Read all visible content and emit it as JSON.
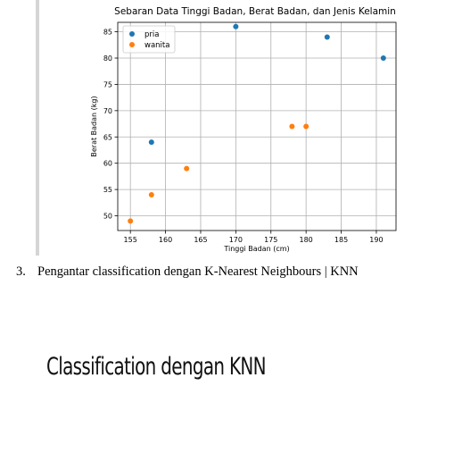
{
  "chart_data": {
    "type": "scatter",
    "title": "Sebaran Data Tinggi Badan, Berat Badan, dan Jenis Kelamin",
    "xlabel": "Tinggi Badan (cm)",
    "ylabel": "Berat Badan (kg)",
    "xlim": [
      153.2,
      192.8
    ],
    "ylim": [
      47.2,
      86.8
    ],
    "xticks": [
      155,
      160,
      165,
      170,
      175,
      180,
      185,
      190
    ],
    "yticks": [
      50,
      55,
      60,
      65,
      70,
      75,
      80,
      85
    ],
    "grid": true,
    "legend_position": "top-left",
    "series": [
      {
        "name": "pria",
        "color": "#1f77b4",
        "points": [
          [
            158,
            64
          ],
          [
            170,
            86
          ],
          [
            183,
            84
          ],
          [
            191,
            80
          ]
        ]
      },
      {
        "name": "wanita",
        "color": "#ff7f0e",
        "points": [
          [
            155,
            49
          ],
          [
            158,
            54
          ],
          [
            163,
            59
          ],
          [
            178,
            67
          ],
          [
            180,
            67
          ]
        ]
      }
    ]
  },
  "list_item": {
    "number": "3.",
    "text": "Pengantar classification dengan K-Nearest Neighbours | KNN"
  },
  "heading": "Classification dengan KNN"
}
